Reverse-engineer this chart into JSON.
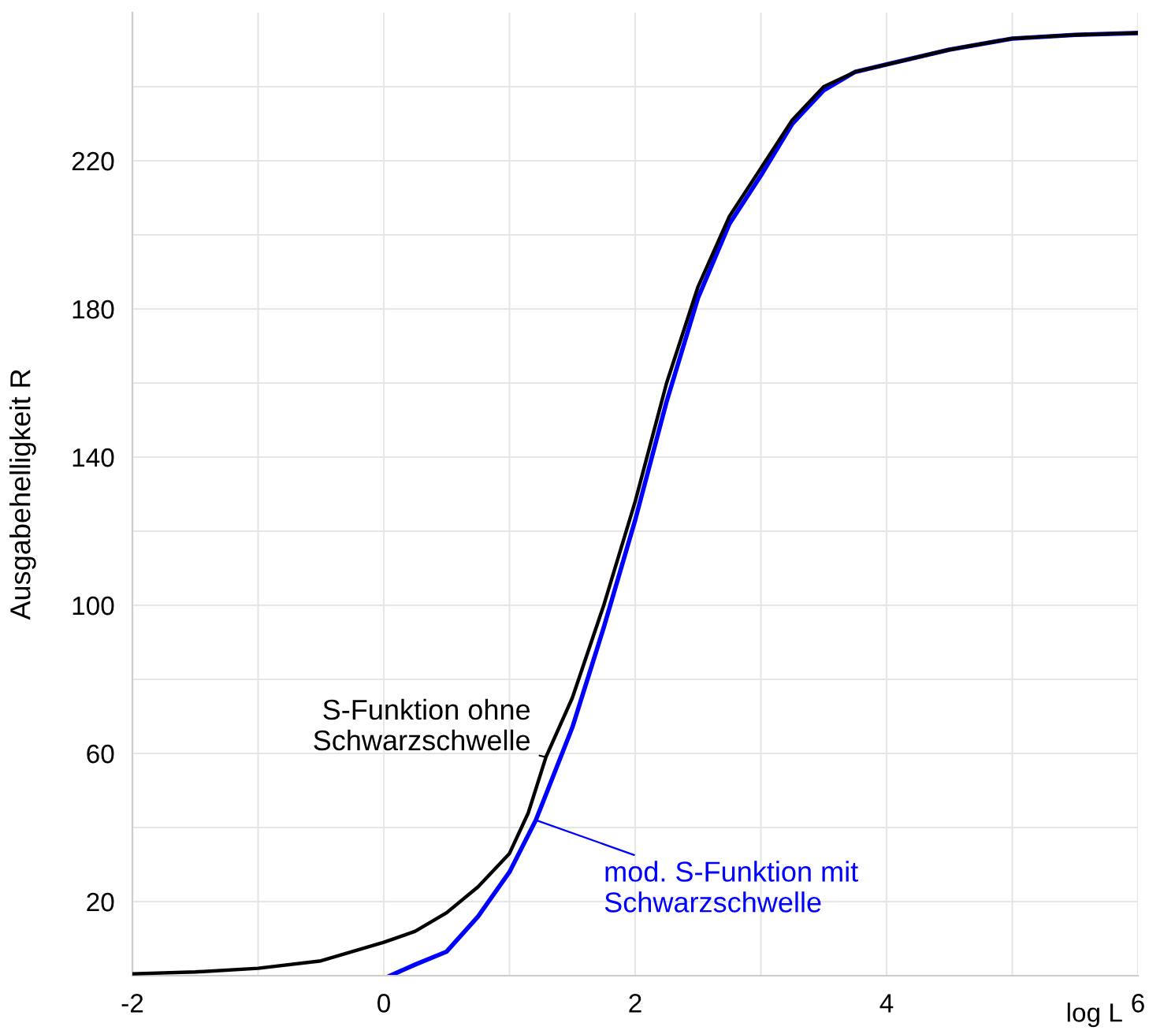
{
  "chart_data": {
    "type": "line",
    "xlabel": "log L",
    "ylabel": "Ausgabehelligkeit R",
    "xlim": [
      -2,
      6
    ],
    "ylim": [
      0,
      260
    ],
    "xticks": [
      -2,
      {
        "value": -1,
        "label": null
      },
      0,
      {
        "value": 1,
        "label": null
      },
      2,
      {
        "value": 3,
        "label": null
      },
      4,
      {
        "value": 5,
        "label": null
      },
      6
    ],
    "yticks": [
      20,
      {
        "value": 40,
        "label": null
      },
      60,
      {
        "value": 80,
        "label": null
      },
      100,
      {
        "value": 120,
        "label": null
      },
      140,
      {
        "value": 160,
        "label": null
      },
      180,
      {
        "value": 200,
        "label": null
      },
      220,
      {
        "value": 240,
        "label": null
      }
    ],
    "grid": true,
    "marker": "none",
    "line_style": "solid",
    "series": [
      {
        "color": "#000000",
        "x": [
          -2,
          -1.5,
          -1,
          -0.5,
          0,
          0.25,
          0.5,
          0.75,
          1,
          1.15,
          1.29,
          1.5,
          1.75,
          2,
          2.25,
          2.5,
          2.75,
          3,
          3.25,
          3.5,
          3.75,
          4,
          4.5,
          5,
          5.5,
          6
        ],
        "values": [
          0.5,
          1,
          2,
          4,
          9,
          12,
          17,
          24,
          33,
          44,
          59,
          75,
          100,
          128,
          160,
          186,
          205,
          218,
          231,
          240,
          244,
          246,
          250,
          253,
          254,
          254.5
        ]
      },
      {
        "color": "#0000ff",
        "x": [
          0.05,
          0.25,
          0.5,
          0.75,
          1,
          1.21,
          1.5,
          1.75,
          2,
          2.25,
          2.5,
          2.75,
          3,
          3.25,
          3.5,
          3.75,
          4,
          4.5,
          5,
          5.5,
          6
        ],
        "values": [
          0,
          3,
          6.5,
          16,
          28,
          42,
          67,
          94,
          123,
          155,
          183,
          203,
          216,
          230,
          239,
          244,
          246,
          250,
          253,
          254,
          254.5
        ]
      }
    ],
    "annotations": [
      {
        "text": "S-Funktion ohne\nSchwarzschwelle",
        "x": 1.29,
        "y": 59
      },
      {
        "text": "mod. S-Funktion mit\nSchwarzschwelle",
        "x": 1.21,
        "y": 42
      }
    ]
  }
}
